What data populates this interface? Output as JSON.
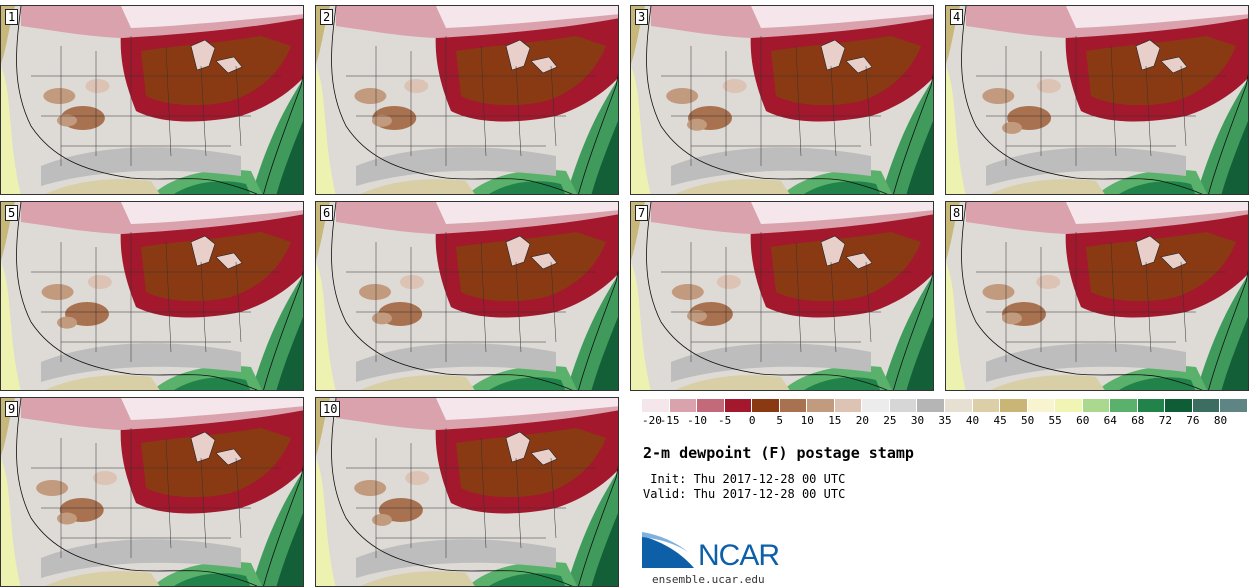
{
  "product": {
    "title": "2-m dewpoint (F) postage stamp",
    "init": " Init: Thu 2017-12-28 00 UTC",
    "valid": "Valid: Thu 2017-12-28 00 UTC"
  },
  "members": [
    {
      "label": "1"
    },
    {
      "label": "2"
    },
    {
      "label": "3"
    },
    {
      "label": "4"
    },
    {
      "label": "5"
    },
    {
      "label": "6"
    },
    {
      "label": "7"
    },
    {
      "label": "8"
    },
    {
      "label": "9"
    },
    {
      "label": "10"
    }
  ],
  "legend": {
    "colors": [
      "#f4e6ea",
      "#d9a2ad",
      "#c2697a",
      "#a3182c",
      "#8a3a12",
      "#a8714f",
      "#c29a7e",
      "#dcc3b4",
      "#ececec",
      "#d6d6d6",
      "#b5b5b5",
      "#e6e0d2",
      "#dccfa8",
      "#c9b575",
      "#f8f4cf",
      "#f0f5b3",
      "#a9d88e",
      "#59b16b",
      "#21834a",
      "#0f5d37",
      "#3b6e61",
      "#5e8584"
    ],
    "labels": [
      "-20",
      "-15",
      "-10",
      "-5",
      "0",
      "5",
      "10",
      "15",
      "20",
      "25",
      "30",
      "35",
      "40",
      "45",
      "50",
      "55",
      "60",
      "64",
      "68",
      "72",
      "76",
      "80"
    ]
  },
  "logo": {
    "text": "NCAR",
    "site": "ensemble.ucar.edu"
  }
}
